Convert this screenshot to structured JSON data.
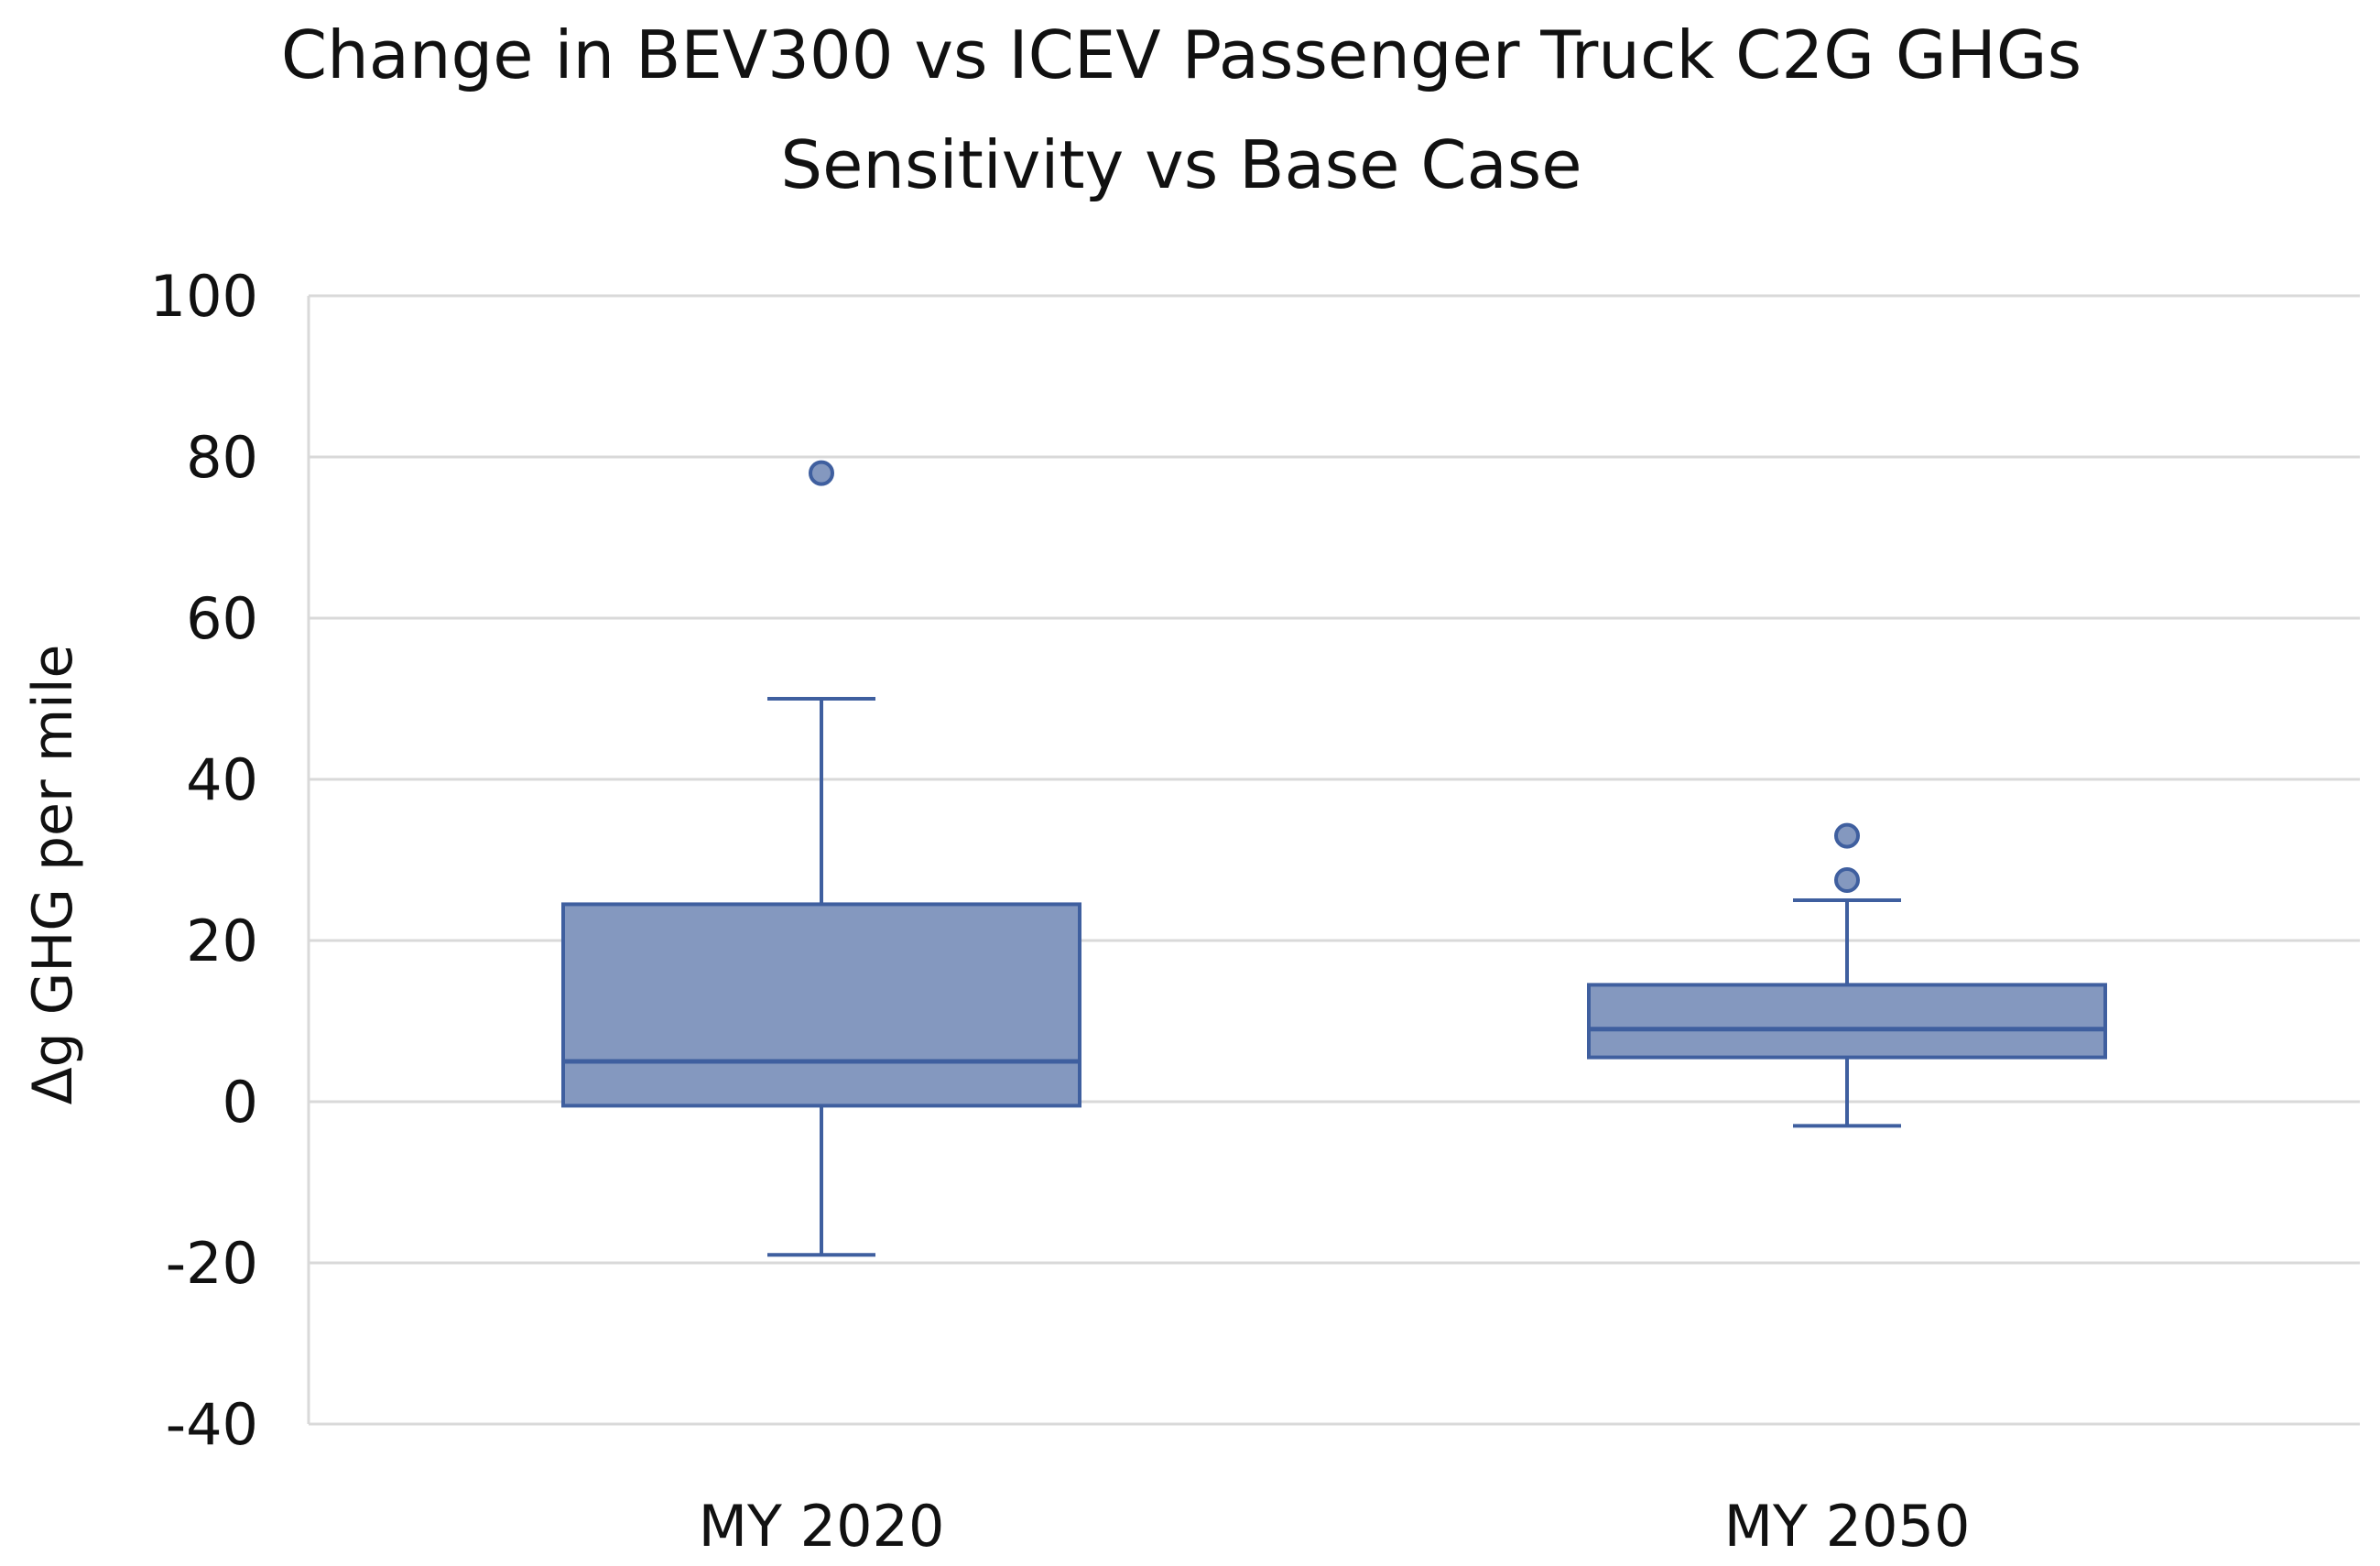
{
  "chart_data": {
    "type": "boxplot",
    "title_lines": [
      "Change in BEV300 vs ICEV Passenger Truck C2G GHGs",
      "Sensitivity vs Base Case"
    ],
    "xlabel": "",
    "ylabel": "Δg GHG per mile",
    "ylim": [
      -40,
      100
    ],
    "yticks": [
      100,
      80,
      60,
      40,
      20,
      0,
      -20,
      -40
    ],
    "ytick_labels": [
      "100",
      "80",
      "60",
      "40",
      "20",
      "0",
      "-20",
      "-40"
    ],
    "grid": true,
    "categories": [
      "MY 2020",
      "MY 2050"
    ],
    "series": [
      {
        "name": "MY 2020",
        "whisker_low": -19,
        "q1": -0.5,
        "median": 5,
        "q3": 24.5,
        "whisker_high": 50,
        "outliers": [
          78
        ]
      },
      {
        "name": "MY 2050",
        "whisker_low": -3,
        "q1": 5.5,
        "median": 9,
        "q3": 14.5,
        "whisker_high": 25,
        "outliers": [
          33,
          27.5
        ]
      }
    ],
    "colors": {
      "box_fill": "#8498BF",
      "box_edge": "#3F5F9F",
      "grid": "#D9D9D9",
      "axis": "#D9D9D9",
      "text": "#111111",
      "background": "#FFFFFF"
    }
  }
}
